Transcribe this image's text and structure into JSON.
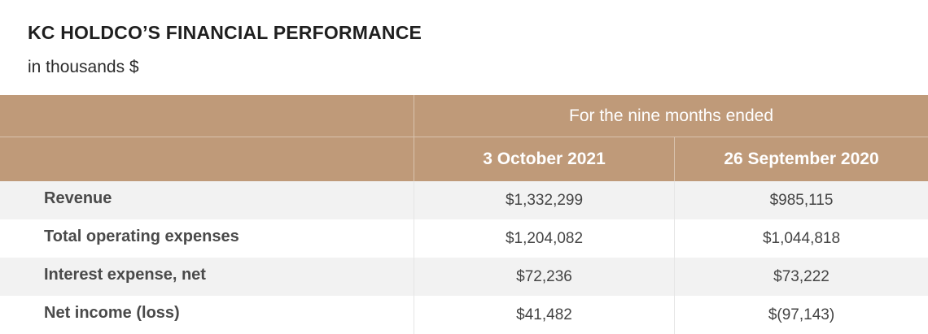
{
  "title": "KC HOLDCO’S FINANCIAL PERFORMANCE",
  "subtitle": "in thousands $",
  "table": {
    "group_header": "For the nine months ended",
    "columns": [
      "3 October 2021",
      "26 September 2020"
    ],
    "rows": [
      {
        "label": "Revenue",
        "values": [
          "$1,332,299",
          "$985,115"
        ]
      },
      {
        "label": "Total operating expenses",
        "values": [
          "$1,204,082",
          "$1,044,818"
        ]
      },
      {
        "label": "Interest expense, net",
        "values": [
          "$72,236",
          "$73,222"
        ]
      },
      {
        "label": "Net income (loss)",
        "values": [
          "$41,482",
          "$(97,143)"
        ]
      }
    ]
  },
  "colors": {
    "header_background": "#bf9a79",
    "header_text": "#ffffff",
    "row_shade": "#f2f2f2"
  }
}
